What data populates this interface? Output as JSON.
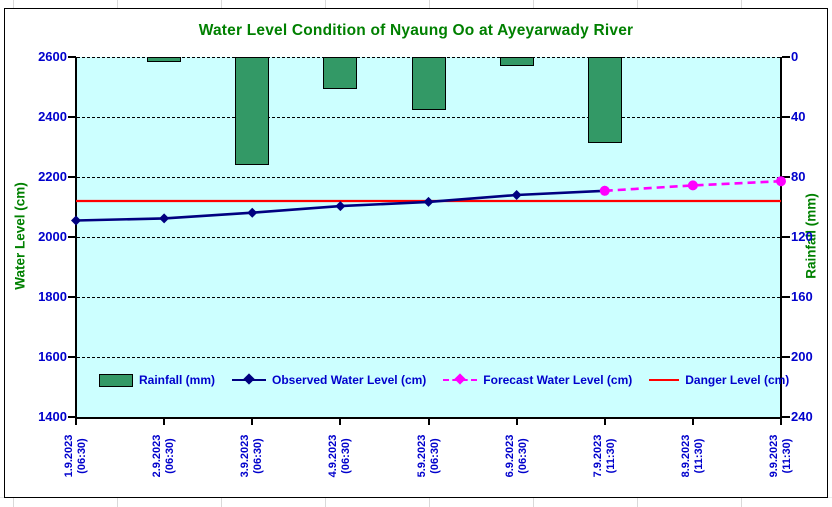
{
  "chart_data": {
    "type": "combo",
    "title": "Water Level Condition of Nyaung Oo at Ayeyarwady River",
    "title_color": "#008000",
    "plot_bg": "#CCFFFF",
    "grid": true,
    "legend_position": "bottom-inside",
    "categories": [
      "1.9.2023",
      "2.9.2023",
      "3.9.2023",
      "4.9.2023",
      "5.9.2023",
      "6.9.2023",
      "7.9.2023",
      "8.9.2023",
      "9.9.2023"
    ],
    "category_times": [
      "(06:30)",
      "(06:30)",
      "(06:30)",
      "(06:30)",
      "(06:30)",
      "(06:30)",
      "(11:30)",
      "(11:30)",
      "(11:30)"
    ],
    "left_axis": {
      "label": "Water Level (cm)",
      "min": 1400,
      "max": 2600,
      "ticks": [
        2600,
        2400,
        2200,
        2000,
        1800,
        1600,
        1400
      ],
      "tick_color": "#0000CC",
      "label_color": "#008000"
    },
    "right_axis": {
      "label": "Rainfall (mm)",
      "min": 0,
      "max": 240,
      "ticks": [
        0,
        40,
        80,
        120,
        160,
        200,
        240
      ],
      "inverted": true,
      "tick_color": "#0000CC",
      "label_color": "#008000"
    },
    "series": [
      {
        "name": "Rainfall (mm)",
        "type": "bar",
        "axis": "right",
        "color": "#339966",
        "values": [
          0,
          3,
          72,
          21,
          35,
          6,
          57,
          null,
          null
        ]
      },
      {
        "name": "Observed Water Level (cm)",
        "type": "line",
        "axis": "left",
        "color": "#000080",
        "marker": "diamond",
        "values": [
          2055,
          2062,
          2081,
          2103,
          2117,
          2140,
          2154,
          null,
          null
        ]
      },
      {
        "name": "Forecast Water Level (cm)",
        "type": "line",
        "axis": "left",
        "color": "#FF00FF",
        "marker": "circle",
        "dashed": true,
        "values": [
          null,
          null,
          null,
          null,
          null,
          null,
          2154,
          2172,
          2186
        ]
      },
      {
        "name": "Danger Level (cm)",
        "type": "hline",
        "axis": "left",
        "color": "#FF0000",
        "value": 2120
      }
    ]
  }
}
